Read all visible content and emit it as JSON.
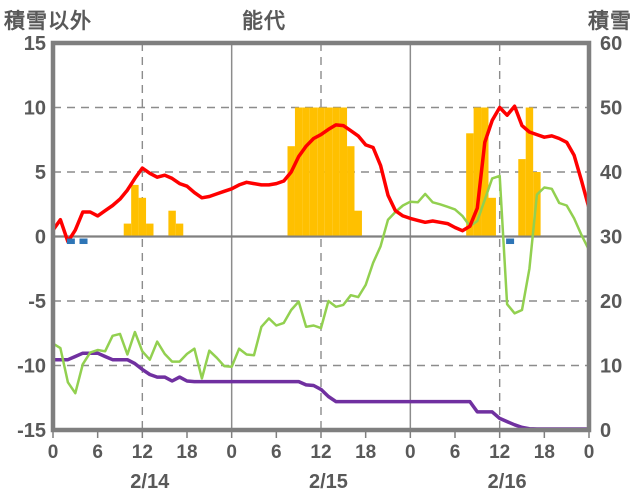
{
  "header": {
    "left_axis_title": "積雪以外",
    "chart_title": "能代",
    "right_axis_title": "積雪"
  },
  "chart_data": {
    "type": "line",
    "title": "能代",
    "x_axis": {
      "span_hours": 72,
      "tick_hours": [
        0,
        6,
        12,
        18,
        24,
        30,
        36,
        42,
        48,
        54,
        60,
        66,
        72
      ],
      "tick_labels": [
        "0",
        "6",
        "12",
        "18",
        "0",
        "6",
        "12",
        "18",
        "0",
        "6",
        "12",
        "18",
        "0"
      ],
      "date_labels": [
        {
          "label": "2/14",
          "hour": 13
        },
        {
          "label": "2/15",
          "hour": 37
        },
        {
          "label": "2/16",
          "hour": 61
        }
      ],
      "solid_line_hours": [
        24,
        48
      ],
      "dashed_line_hours": [
        12,
        36,
        60
      ]
    },
    "left_axis": {
      "title": "積雪以外",
      "min": -15,
      "max": 15,
      "ticks": [
        15,
        10,
        5,
        0,
        -5,
        -10,
        -15
      ],
      "dashed_gridline_values": [
        10,
        5,
        -5,
        -10
      ],
      "zero_line": 0
    },
    "right_axis": {
      "title": "積雪",
      "min": 0,
      "max": 60,
      "ticks": [
        60,
        50,
        40,
        30,
        20,
        10,
        0
      ]
    },
    "series": [
      {
        "name": "precipitation-bars",
        "type": "bar",
        "axis": "left",
        "color": "#FFC000",
        "bars": [
          {
            "hour": 10,
            "value": 1
          },
          {
            "hour": 11,
            "value": 4
          },
          {
            "hour": 12,
            "value": 3
          },
          {
            "hour": 13,
            "value": 1
          },
          {
            "hour": 16,
            "value": 2
          },
          {
            "hour": 17,
            "value": 1
          },
          {
            "hour": 32,
            "value": 7
          },
          {
            "hour": 33,
            "value": 10
          },
          {
            "hour": 34,
            "value": 10
          },
          {
            "hour": 35,
            "value": 10
          },
          {
            "hour": 36,
            "value": 10
          },
          {
            "hour": 37,
            "value": 10
          },
          {
            "hour": 38,
            "value": 10
          },
          {
            "hour": 39,
            "value": 10
          },
          {
            "hour": 40,
            "value": 7
          },
          {
            "hour": 41,
            "value": 2
          },
          {
            "hour": 56,
            "value": 8
          },
          {
            "hour": 57,
            "value": 10
          },
          {
            "hour": 58,
            "value": 10
          },
          {
            "hour": 59,
            "value": 3
          },
          {
            "hour": 63,
            "value": 6
          },
          {
            "hour": 64,
            "value": 10
          },
          {
            "hour": 65,
            "value": 5
          }
        ]
      },
      {
        "name": "purple-line",
        "type": "line",
        "axis": "right",
        "color": "#7030A0",
        "stroke_width": 3.5,
        "values": [
          10.9,
          10.9,
          10.9,
          11.4,
          11.9,
          11.9,
          11.9,
          11.4,
          10.9,
          10.9,
          10.9,
          10.3,
          9.4,
          8.6,
          8.2,
          8.2,
          7.6,
          8.2,
          7.6,
          7.5,
          7.5,
          7.5,
          7.5,
          7.5,
          7.5,
          7.5,
          7.5,
          7.5,
          7.5,
          7.5,
          7.5,
          7.5,
          7.5,
          7.5,
          7.0,
          6.9,
          6.3,
          5.2,
          4.4,
          4.4,
          4.4,
          4.4,
          4.4,
          4.4,
          4.4,
          4.4,
          4.4,
          4.4,
          4.4,
          4.4,
          4.4,
          4.4,
          4.4,
          4.4,
          4.4,
          4.4,
          4.4,
          2.8,
          2.8,
          2.8,
          1.8,
          1.3,
          0.8,
          0.4,
          0.2,
          0.15,
          0.15,
          0.15,
          0.15,
          0.15,
          0.15,
          0.15,
          0.15
        ]
      },
      {
        "name": "snow-depth-line",
        "type": "line",
        "axis": "right",
        "color": "#92D050",
        "stroke_width": 2.5,
        "values": [
          13.4,
          12.7,
          7.4,
          5.7,
          10.2,
          12.0,
          12.4,
          12.2,
          14.6,
          14.9,
          11.7,
          15.2,
          12.2,
          10.9,
          13.7,
          11.8,
          10.6,
          10.6,
          11.8,
          12.6,
          8.0,
          12.3,
          11.2,
          9.9,
          9.8,
          12.6,
          11.7,
          11.6,
          16.0,
          17.3,
          16.2,
          16.6,
          18.6,
          19.9,
          16.0,
          16.2,
          15.8,
          20.0,
          19.1,
          19.4,
          20.9,
          20.6,
          22.5,
          25.9,
          28.5,
          32.6,
          33.8,
          34.8,
          35.4,
          35.3,
          36.6,
          35.3,
          35.0,
          34.6,
          34.2,
          33.2,
          31.6,
          32.4,
          35.7,
          39.0,
          39.4,
          19.5,
          18.1,
          18.6,
          25.0,
          36.5,
          37.6,
          37.4,
          35.2,
          34.8,
          32.8,
          30.2,
          27.9
        ]
      },
      {
        "name": "temperature-line",
        "type": "line",
        "axis": "left",
        "color": "#FF0000",
        "stroke_width": 3.5,
        "values": [
          0.5,
          1.3,
          -0.4,
          0.5,
          1.9,
          1.9,
          1.6,
          2.0,
          2.4,
          2.9,
          3.6,
          4.5,
          5.3,
          4.9,
          4.6,
          4.75,
          4.5,
          4.1,
          3.9,
          3.4,
          3.0,
          3.1,
          3.3,
          3.5,
          3.7,
          4.0,
          4.2,
          4.1,
          4.0,
          4.0,
          4.1,
          4.3,
          5.0,
          6.2,
          7.0,
          7.6,
          7.9,
          8.3,
          8.65,
          8.6,
          8.2,
          7.8,
          7.1,
          6.9,
          5.5,
          3.2,
          2.0,
          1.6,
          1.4,
          1.25,
          1.1,
          1.2,
          1.1,
          1.0,
          0.7,
          0.45,
          0.8,
          2.2,
          7.3,
          9.0,
          10.0,
          9.4,
          10.1,
          8.6,
          8.1,
          7.9,
          7.7,
          7.8,
          7.6,
          7.3,
          6.3,
          4.3,
          2.2
        ]
      },
      {
        "name": "blue-square-markers",
        "type": "square-marker",
        "axis": "left",
        "color": "#2E75B6",
        "points": [
          {
            "hour": 2.4,
            "value": -0.35
          },
          {
            "hour": 4.1,
            "value": -0.35
          },
          {
            "hour": 61.4,
            "value": -0.35
          }
        ]
      }
    ],
    "style": {
      "frame_color": "#7f7f7f",
      "grid_color": "#8c8c8c",
      "zero_line_color": "#808080",
      "label_color": "#595959"
    }
  }
}
